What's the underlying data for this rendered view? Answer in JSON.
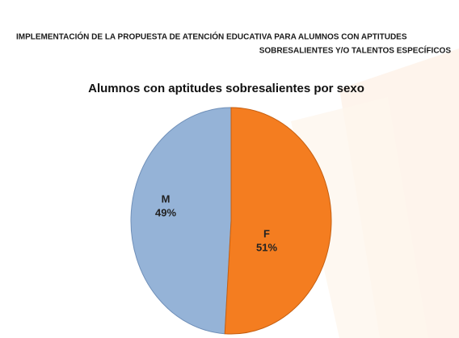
{
  "header": [
    "IMPLEMENTACIÓN DE LA PROPUESTA DE ATENCIÓN EDUCATIVA PARA ALUMNOS CON APTITUDES",
    "SOBRESALIENTES Y/O TALENTOS ESPECÍFICOS"
  ],
  "chart_data": {
    "type": "pie",
    "title": "Alumnos con aptitudes sobresalientes por sexo",
    "categories": [
      "M",
      "F"
    ],
    "values": [
      49,
      51
    ],
    "value_labels": [
      "49%",
      "51%"
    ],
    "colors": [
      "#95b3d7",
      "#f47d20"
    ]
  }
}
